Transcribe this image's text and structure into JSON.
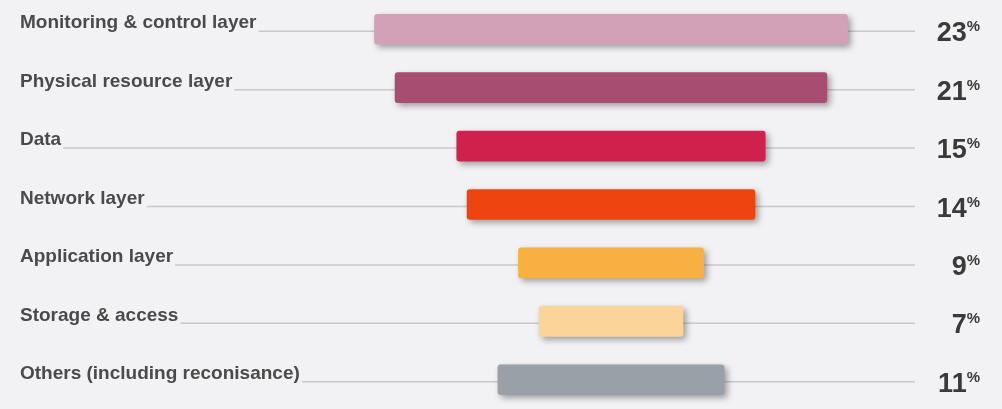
{
  "chart_data": {
    "type": "other",
    "categories": [
      "Monitoring & control layer",
      "Physical resource layer",
      "Data",
      "Network layer",
      "Application layer",
      "Storage & access",
      "Others (including reconisance)"
    ],
    "values": [
      23,
      21,
      15,
      14,
      9,
      7,
      11
    ],
    "colors": [
      "#d1a1b8",
      "#a84d72",
      "#d0204c",
      "#ee4510",
      "#f8b040",
      "#fad499",
      "#9aa0a8"
    ],
    "value_labels": [
      "23%",
      "21%",
      "15%",
      "14%",
      "9%",
      "7%",
      "11%"
    ]
  }
}
